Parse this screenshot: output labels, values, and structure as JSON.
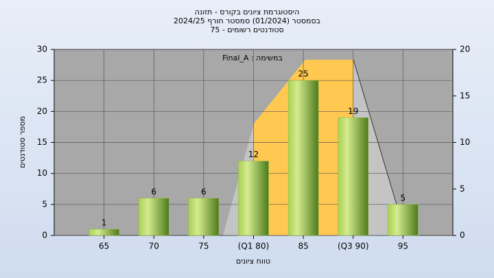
{
  "chart_data": {
    "type": "bar",
    "title": [
      "היסטוגרמת ציונים בקורס - תזונה",
      "בסמסטר  (01/2024)  סמסטר חורף 2024/25",
      "סטודנטים רשומים - 75"
    ],
    "annotation": "Final_A : במשימה",
    "x_label": "טווח ציונים",
    "y_label": "מספר סטודנטים",
    "categories": [
      "65",
      "70",
      "75",
      "(Q1 80)",
      "85",
      "(Q3 90)",
      "95"
    ],
    "values": [
      1,
      6,
      6,
      12,
      25,
      19,
      5
    ],
    "color": "#8db83a",
    "ylim": [
      0,
      30
    ],
    "yticks": [
      0,
      5,
      10,
      15,
      20,
      25,
      30
    ],
    "y2lim": [
      0,
      20
    ],
    "y2ticks": [
      0,
      5,
      10,
      15,
      20
    ],
    "grid": true
  }
}
